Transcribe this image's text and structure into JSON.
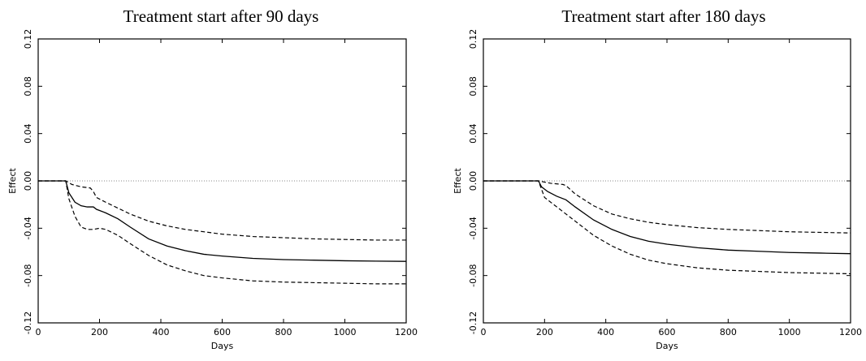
{
  "chart_data": [
    {
      "type": "line",
      "title": "Treatment start after 90 days",
      "xlabel": "Days",
      "ylabel": "Effect",
      "xlim": [
        0,
        1200
      ],
      "ylim": [
        -0.12,
        0.12
      ],
      "xticks": [
        0,
        200,
        400,
        600,
        800,
        1000,
        1200
      ],
      "yticks": [
        -0.12,
        -0.08,
        -0.04,
        0.0,
        0.04,
        0.08,
        0.12
      ],
      "ytick_labels": [
        "-0.12",
        "-0.08",
        "-0.04",
        "0.00",
        "0.04",
        "0.08",
        "0.12"
      ],
      "reference_line": {
        "y": 0.0,
        "style": "dotted"
      },
      "series": [
        {
          "style": "solid",
          "x": [
            0,
            90,
            100,
            120,
            140,
            160,
            180,
            190,
            220,
            260,
            300,
            360,
            420,
            480,
            540,
            600,
            700,
            800,
            900,
            1000,
            1100,
            1200
          ],
          "y": [
            0.0,
            0.0,
            -0.01,
            -0.018,
            -0.021,
            -0.022,
            -0.022,
            -0.024,
            -0.027,
            -0.032,
            -0.039,
            -0.049,
            -0.055,
            -0.059,
            -0.062,
            -0.0635,
            -0.0655,
            -0.0665,
            -0.067,
            -0.0675,
            -0.0678,
            -0.068
          ]
        },
        {
          "style": "dashed",
          "x": [
            0,
            90,
            110,
            140,
            170,
            180,
            190,
            220,
            260,
            300,
            360,
            420,
            480,
            540,
            600,
            700,
            800,
            900,
            1000,
            1100,
            1200
          ],
          "y": [
            0.0,
            0.0,
            -0.003,
            -0.005,
            -0.006,
            -0.009,
            -0.014,
            -0.018,
            -0.023,
            -0.028,
            -0.034,
            -0.038,
            -0.041,
            -0.043,
            -0.045,
            -0.047,
            -0.048,
            -0.049,
            -0.0495,
            -0.05,
            -0.05
          ]
        },
        {
          "style": "dashed",
          "x": [
            0,
            90,
            100,
            120,
            140,
            160,
            180,
            200,
            220,
            260,
            300,
            360,
            420,
            480,
            540,
            600,
            700,
            800,
            900,
            1000,
            1100,
            1200
          ],
          "y": [
            0.0,
            0.0,
            -0.015,
            -0.03,
            -0.039,
            -0.041,
            -0.041,
            -0.04,
            -0.041,
            -0.046,
            -0.053,
            -0.063,
            -0.071,
            -0.076,
            -0.08,
            -0.082,
            -0.0845,
            -0.0855,
            -0.086,
            -0.0865,
            -0.087,
            -0.087
          ]
        }
      ]
    },
    {
      "type": "line",
      "title": "Treatment start after 180 days",
      "xlabel": "Days",
      "ylabel": "Effect",
      "xlim": [
        0,
        1200
      ],
      "ylim": [
        -0.12,
        0.12
      ],
      "xticks": [
        0,
        200,
        400,
        600,
        800,
        1000,
        1200
      ],
      "yticks": [
        -0.12,
        -0.08,
        -0.04,
        0.0,
        0.04,
        0.08,
        0.12
      ],
      "ytick_labels": [
        "-0.12",
        "-0.08",
        "-0.04",
        "0.00",
        "0.04",
        "0.08",
        "0.12"
      ],
      "reference_line": {
        "y": 0.0,
        "style": "dotted"
      },
      "series": [
        {
          "style": "solid",
          "x": [
            0,
            180,
            190,
            210,
            240,
            270,
            300,
            360,
            420,
            480,
            540,
            600,
            700,
            800,
            900,
            1000,
            1100,
            1200
          ],
          "y": [
            0.0,
            0.0,
            -0.005,
            -0.009,
            -0.013,
            -0.016,
            -0.022,
            -0.033,
            -0.041,
            -0.047,
            -0.051,
            -0.0535,
            -0.0565,
            -0.0585,
            -0.0595,
            -0.0605,
            -0.061,
            -0.0615
          ]
        },
        {
          "style": "dashed",
          "x": [
            0,
            180,
            220,
            260,
            270,
            300,
            360,
            420,
            480,
            540,
            600,
            700,
            800,
            900,
            1000,
            1100,
            1200
          ],
          "y": [
            0.0,
            0.0,
            -0.002,
            -0.003,
            -0.004,
            -0.011,
            -0.021,
            -0.028,
            -0.032,
            -0.035,
            -0.037,
            -0.0395,
            -0.041,
            -0.042,
            -0.043,
            -0.0435,
            -0.044
          ]
        },
        {
          "style": "dashed",
          "x": [
            0,
            180,
            200,
            240,
            270,
            300,
            360,
            420,
            480,
            540,
            600,
            700,
            800,
            900,
            1000,
            1100,
            1200
          ],
          "y": [
            0.0,
            0.0,
            -0.014,
            -0.022,
            -0.028,
            -0.034,
            -0.046,
            -0.055,
            -0.062,
            -0.067,
            -0.07,
            -0.0735,
            -0.0755,
            -0.0765,
            -0.0775,
            -0.078,
            -0.0785
          ]
        }
      ]
    }
  ]
}
